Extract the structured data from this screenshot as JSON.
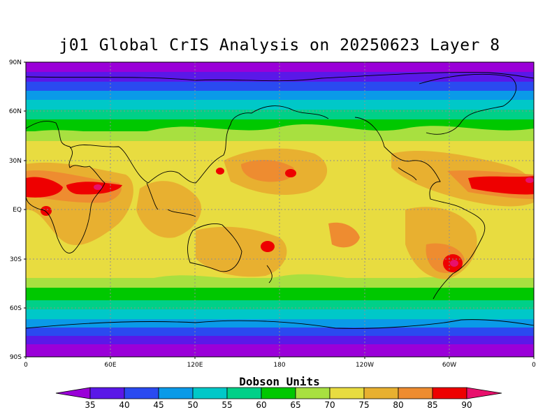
{
  "title": "j01 Global CrIS Analysis on 20250623 Layer 8",
  "lat_ticks": [
    "90N",
    "60N",
    "30N",
    "EQ",
    "30S",
    "60S",
    "90S"
  ],
  "lon_ticks": [
    "0",
    "60E",
    "120E",
    "180",
    "120W",
    "60W",
    "0"
  ],
  "colorbar": {
    "title": "Dobson Units",
    "labels": [
      "35",
      "40",
      "45",
      "50",
      "55",
      "60",
      "65",
      "70",
      "75",
      "80",
      "85",
      "90"
    ],
    "colors": [
      "#9a00d8",
      "#5a18e8",
      "#2a4af0",
      "#0a9ae8",
      "#00c8c8",
      "#00d088",
      "#00c800",
      "#a8e040",
      "#e8dc40",
      "#e8b030",
      "#ee8c30",
      "#ee0000",
      "#e8106c"
    ]
  },
  "accent": {
    "frame": "#000000",
    "grid": "#909090",
    "coast": "#000000"
  }
}
